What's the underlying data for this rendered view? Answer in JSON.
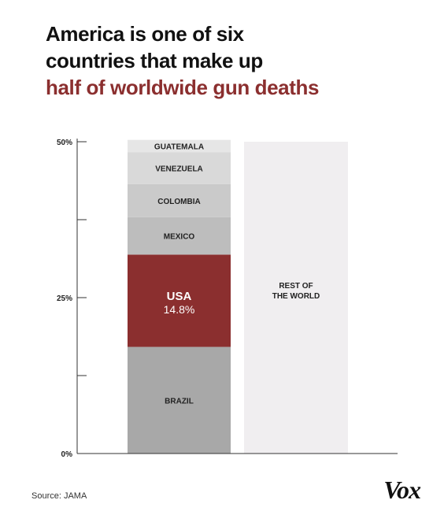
{
  "title": {
    "line1": "America is one of six",
    "line2": "countries that make up",
    "line3": "half of worldwide gun deaths"
  },
  "source": "Source: JAMA",
  "brand": "Vox",
  "colors": {
    "accent": "#8b2f2f",
    "text": "#111111",
    "rest": "#f0eef0"
  },
  "chart_data": {
    "type": "bar",
    "stacked": true,
    "ylim": [
      0,
      50
    ],
    "yticks": [
      {
        "value": 0,
        "label": "0%"
      },
      {
        "value": 25,
        "label": "25%"
      },
      {
        "value": 50,
        "label": "50%"
      }
    ],
    "minor_ticks": [
      12.5,
      37.5
    ],
    "grid": false,
    "stack": [
      {
        "name": "BRAZIL",
        "value": 17.1,
        "color": "#a8a8a8"
      },
      {
        "name": "USA",
        "value": 14.8,
        "value_label": "14.8%",
        "color": "#8b2f2f",
        "highlight": true
      },
      {
        "name": "MEXICO",
        "value": 6.0,
        "color": "#bdbdbd"
      },
      {
        "name": "COLOMBIA",
        "value": 5.3,
        "color": "#cacaca"
      },
      {
        "name": "VENEZUELA",
        "value": 5.1,
        "color": "#d9d9d9"
      },
      {
        "name": "GUATEMALA",
        "value": 2.0,
        "color": "#e6e6e6"
      }
    ],
    "rest": {
      "name_lines": [
        "REST OF",
        "THE WORLD"
      ],
      "value": 50,
      "color": "#f0eef0"
    }
  }
}
